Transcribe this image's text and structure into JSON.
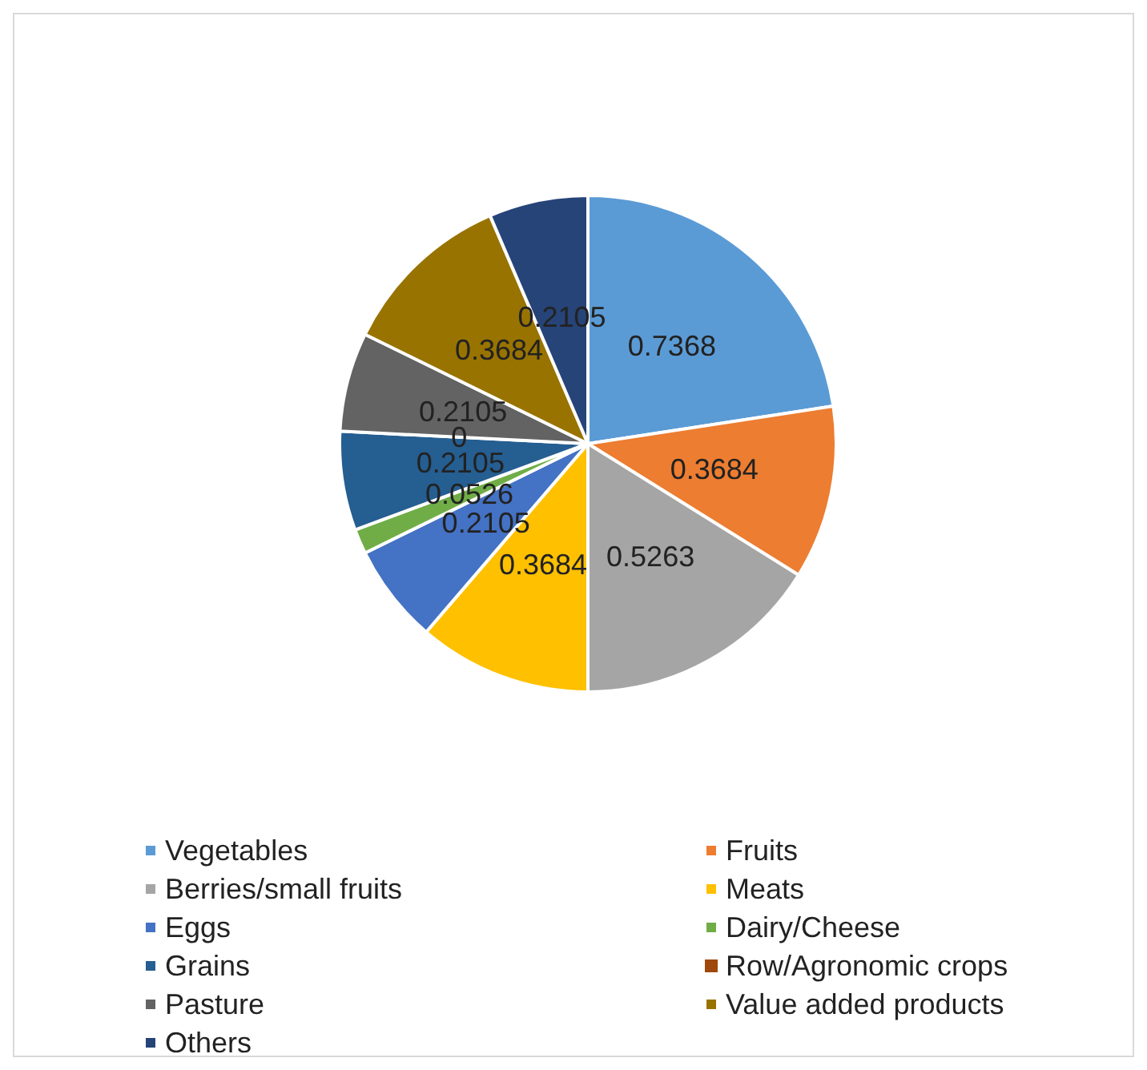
{
  "chart_data": {
    "type": "pie",
    "categories": [
      "Vegetables",
      "Fruits",
      "Berries/small fruits",
      "Meats",
      "Eggs",
      "Dairy/Cheese",
      "Grains",
      "Row/Agronomic crops",
      "Pasture",
      "Value added products",
      "Others"
    ],
    "values": [
      0.7368,
      0.3684,
      0.5263,
      0.3684,
      0.2105,
      0.0526,
      0.2105,
      0,
      0.2105,
      0.3684,
      0.2105
    ],
    "colors": [
      "#5b9bd5",
      "#ed7d31",
      "#a5a5a5",
      "#ffc000",
      "#4472c4",
      "#70ad47",
      "#255e91",
      "#9e480e",
      "#636363",
      "#997300",
      "#264478"
    ],
    "value_labels": [
      "0.7368",
      "0.3684",
      "0.5263",
      "0.3684",
      "0.2105",
      "0.0526",
      "0.2105",
      "0",
      "0.2105",
      "0.3684",
      "0.2105"
    ],
    "legend": "bottom"
  }
}
